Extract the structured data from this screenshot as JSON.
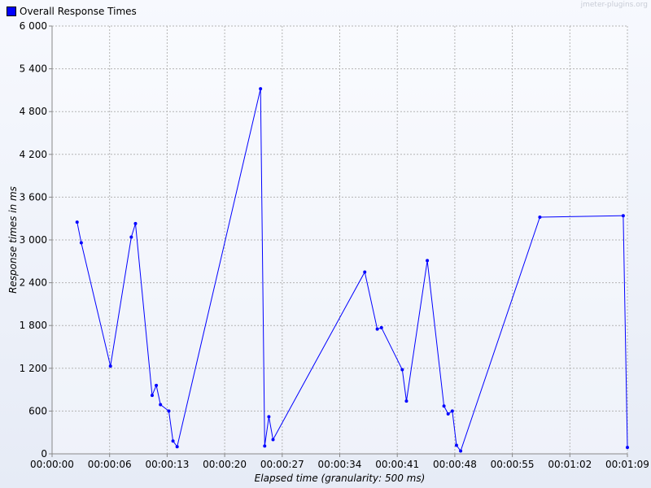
{
  "legend": {
    "label": "Overall Response Times",
    "color": "#0000ff"
  },
  "watermark": "jmeter-plugins.org",
  "chart_data": {
    "type": "line",
    "title": "",
    "xlabel": "Elapsed time (granularity: 500 ms)",
    "ylabel": "Response times in ms",
    "xlim": [
      0,
      69
    ],
    "ylim": [
      0,
      6000
    ],
    "x_ticks": [
      "00:00:00",
      "00:00:06",
      "00:00:13",
      "00:00:20",
      "00:00:27",
      "00:00:34",
      "00:00:41",
      "00:00:48",
      "00:00:55",
      "00:01:02",
      "00:01:09"
    ],
    "y_ticks": [
      "0",
      "600",
      "1 200",
      "1 800",
      "2 400",
      "3 000",
      "3 600",
      "4 200",
      "4 800",
      "5 400",
      "6 000"
    ],
    "grid": true,
    "legend_position": "top-left",
    "series": [
      {
        "name": "Overall Response Times",
        "color": "#0000ff",
        "x_unit": "seconds elapsed",
        "x": [
          3.0,
          3.5,
          7.0,
          9.5,
          10.0,
          12.0,
          12.5,
          13.0,
          14.0,
          14.5,
          15.0,
          25.0,
          25.5,
          26.0,
          26.5,
          37.5,
          39.0,
          39.5,
          42.0,
          42.5,
          45.0,
          47.0,
          47.5,
          48.0,
          48.5,
          49.0,
          58.5,
          68.5,
          69.0
        ],
        "y": [
          3250,
          2960,
          1230,
          3040,
          3230,
          820,
          960,
          690,
          600,
          180,
          100,
          5120,
          110,
          520,
          200,
          2550,
          1750,
          1770,
          1180,
          740,
          2710,
          670,
          560,
          600,
          120,
          40,
          3320,
          3340,
          90
        ]
      }
    ]
  }
}
